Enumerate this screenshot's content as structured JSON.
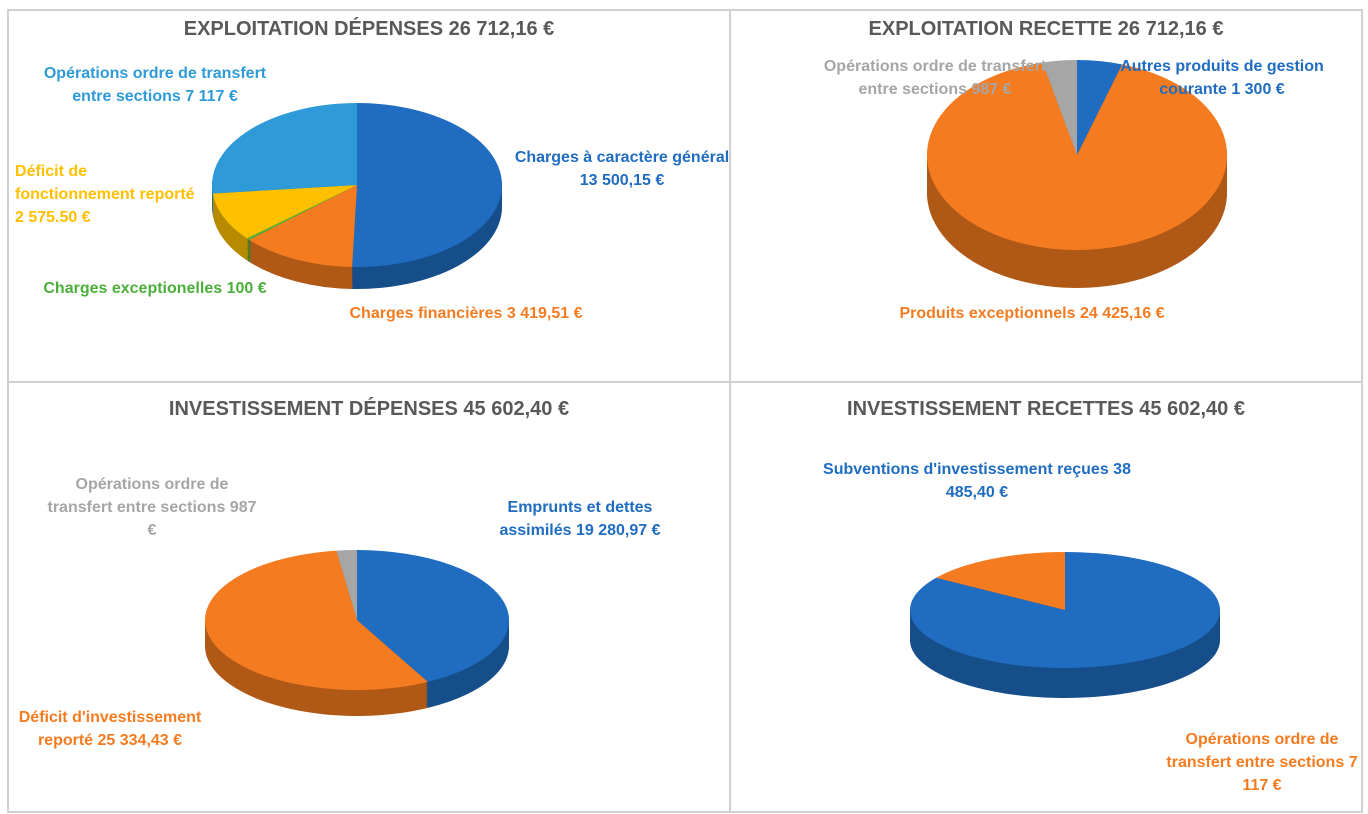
{
  "chart_data": [
    {
      "type": "pie",
      "title": "EXPLOITATION DÉPENSES 26 712,16 €",
      "categories": [
        "Charges à caractère général",
        "Charges financières",
        "Charges exceptionelles",
        "Déficit de fonctionnement reporté",
        "Opérations ordre de transfert entre sections"
      ],
      "values": [
        13500.15,
        3419.51,
        100,
        2575.5,
        7117
      ],
      "value_labels": [
        "13 500,15  €",
        "3 419,51 €",
        "100 €",
        "2 575.50 €",
        "7 117 €"
      ],
      "colors": [
        "#1f6cc0",
        "#f47b20",
        "#4caf3a",
        "#ffc000",
        "#2e9bd8"
      ]
    },
    {
      "type": "pie",
      "title": "EXPLOITATION RECETTE 26 712,16 €",
      "categories": [
        "Autres produits de gestion courante",
        "Produits exceptionnels",
        "Opérations ordre de transfert entre sections"
      ],
      "values": [
        1300,
        24425.16,
        987
      ],
      "value_labels": [
        "1 300 €",
        "24 425,16 €",
        "987 €"
      ],
      "colors": [
        "#1f6cc0",
        "#f47b20",
        "#a6a6a6"
      ]
    },
    {
      "type": "pie",
      "title": "INVESTISSEMENT DÉPENSES 45 602,40 €",
      "categories": [
        "Emprunts et dettes assimilés",
        "Déficit d'investissement reporté",
        "Opérations ordre de transfert entre sections"
      ],
      "values": [
        19280.97,
        25334.43,
        987
      ],
      "value_labels": [
        "19 280,97 €",
        "25 334,43 €",
        "987 €"
      ],
      "colors": [
        "#1f6cc0",
        "#f47b20",
        "#a6a6a6"
      ]
    },
    {
      "type": "pie",
      "title": "INVESTISSEMENT RECETTES 45 602,40 €",
      "categories": [
        "Subventions d'investissement reçues",
        "Opérations ordre de transfert entre sections"
      ],
      "values": [
        38485.4,
        7117
      ],
      "value_labels": [
        "38 485,40 €",
        "7 117 €"
      ],
      "colors": [
        "#1f6cc0",
        "#f47b20"
      ]
    }
  ]
}
